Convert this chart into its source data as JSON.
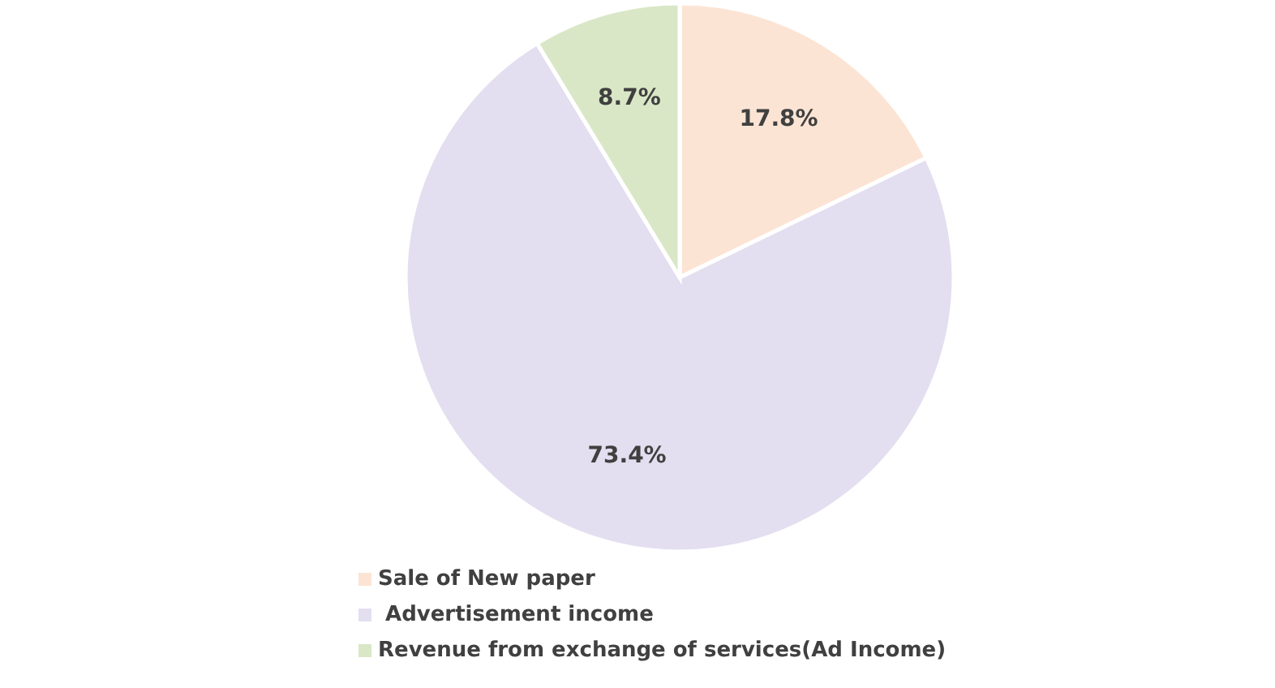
{
  "chart_data": {
    "type": "pie",
    "categories": [
      "Sale of New paper",
      " Advertisement income",
      "Revenue from exchange of services(Ad Income)"
    ],
    "values": [
      17.8,
      73.4,
      8.7
    ],
    "colors": [
      "#fce4d4",
      "#e3dff0",
      "#d9e7c6"
    ],
    "value_labels": [
      "17.8%",
      "73.4%",
      "8.7%"
    ],
    "legend": "bottom"
  }
}
